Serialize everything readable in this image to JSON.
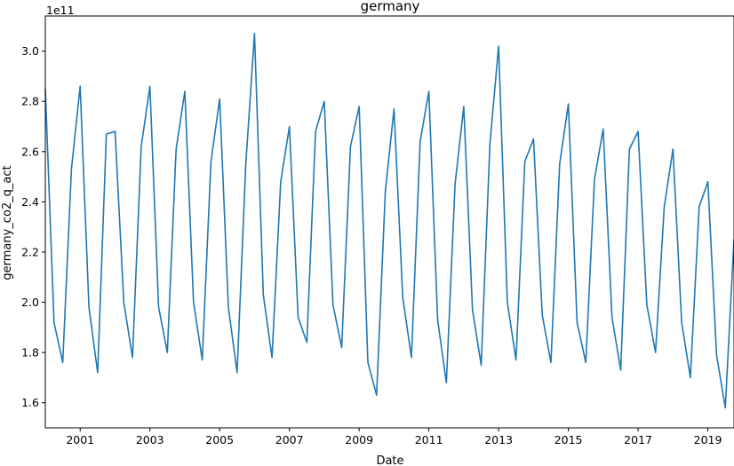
{
  "chart_data": {
    "type": "line",
    "title": "germany",
    "xlabel": "Date",
    "ylabel": "germany_co2_q_act",
    "y_offset_text": "1e11",
    "y_scale_factor": 100000000000.0,
    "xlim": [
      2000.0,
      2019.75
    ],
    "ylim": [
      1.5,
      3.14
    ],
    "line_color": "#1f77b4",
    "grid": false,
    "x_ticks": [
      {
        "value": 2001,
        "label": "2001"
      },
      {
        "value": 2003,
        "label": "2003"
      },
      {
        "value": 2005,
        "label": "2005"
      },
      {
        "value": 2007,
        "label": "2007"
      },
      {
        "value": 2009,
        "label": "2009"
      },
      {
        "value": 2011,
        "label": "2011"
      },
      {
        "value": 2013,
        "label": "2013"
      },
      {
        "value": 2015,
        "label": "2015"
      },
      {
        "value": 2017,
        "label": "2017"
      },
      {
        "value": 2019,
        "label": "2019"
      }
    ],
    "y_ticks": [
      {
        "value": 1.6,
        "label": "1.6"
      },
      {
        "value": 1.8,
        "label": "1.8"
      },
      {
        "value": 2.0,
        "label": "2.0"
      },
      {
        "value": 2.2,
        "label": "2.2"
      },
      {
        "value": 2.4,
        "label": "2.4"
      },
      {
        "value": 2.6,
        "label": "2.6"
      },
      {
        "value": 2.8,
        "label": "2.8"
      },
      {
        "value": 3.0,
        "label": "3.0"
      }
    ],
    "series": [
      {
        "name": "",
        "x": [
          "2000-Q1",
          "2000-Q2",
          "2000-Q3",
          "2000-Q4",
          "2001-Q1",
          "2001-Q2",
          "2001-Q3",
          "2001-Q4",
          "2002-Q1",
          "2002-Q2",
          "2002-Q3",
          "2002-Q4",
          "2003-Q1",
          "2003-Q2",
          "2003-Q3",
          "2003-Q4",
          "2004-Q1",
          "2004-Q2",
          "2004-Q3",
          "2004-Q4",
          "2005-Q1",
          "2005-Q2",
          "2005-Q3",
          "2005-Q4",
          "2006-Q1",
          "2006-Q2",
          "2006-Q3",
          "2006-Q4",
          "2007-Q1",
          "2007-Q2",
          "2007-Q3",
          "2007-Q4",
          "2008-Q1",
          "2008-Q2",
          "2008-Q3",
          "2008-Q4",
          "2009-Q1",
          "2009-Q2",
          "2009-Q3",
          "2009-Q4",
          "2010-Q1",
          "2010-Q2",
          "2010-Q3",
          "2010-Q4",
          "2011-Q1",
          "2011-Q2",
          "2011-Q3",
          "2011-Q4",
          "2012-Q1",
          "2012-Q2",
          "2012-Q3",
          "2012-Q4",
          "2013-Q1",
          "2013-Q2",
          "2013-Q3",
          "2013-Q4",
          "2014-Q1",
          "2014-Q2",
          "2014-Q3",
          "2014-Q4",
          "2015-Q1",
          "2015-Q2",
          "2015-Q3",
          "2015-Q4",
          "2016-Q1",
          "2016-Q2",
          "2016-Q3",
          "2016-Q4",
          "2017-Q1",
          "2017-Q2",
          "2017-Q3",
          "2017-Q4",
          "2018-Q1",
          "2018-Q2",
          "2018-Q3",
          "2018-Q4",
          "2019-Q1",
          "2019-Q2",
          "2019-Q3",
          "2019-Q4"
        ],
        "values": [
          2.85,
          1.92,
          1.76,
          2.53,
          2.86,
          1.98,
          1.72,
          2.67,
          2.68,
          2.0,
          1.78,
          2.62,
          2.86,
          1.98,
          1.8,
          2.61,
          2.84,
          2.0,
          1.77,
          2.56,
          2.81,
          1.98,
          1.72,
          2.55,
          3.07,
          2.03,
          1.78,
          2.48,
          2.7,
          1.94,
          1.84,
          2.68,
          2.8,
          1.99,
          1.82,
          2.62,
          2.78,
          1.76,
          1.63,
          2.44,
          2.77,
          2.02,
          1.78,
          2.64,
          2.84,
          1.93,
          1.68,
          2.47,
          2.78,
          1.97,
          1.75,
          2.63,
          3.02,
          2.0,
          1.77,
          2.56,
          2.65,
          1.95,
          1.76,
          2.55,
          2.79,
          1.92,
          1.76,
          2.49,
          2.69,
          1.94,
          1.73,
          2.61,
          2.68,
          1.99,
          1.8,
          2.38,
          2.61,
          1.92,
          1.7,
          2.38,
          2.48,
          1.79,
          1.58,
          2.25
        ]
      }
    ]
  }
}
